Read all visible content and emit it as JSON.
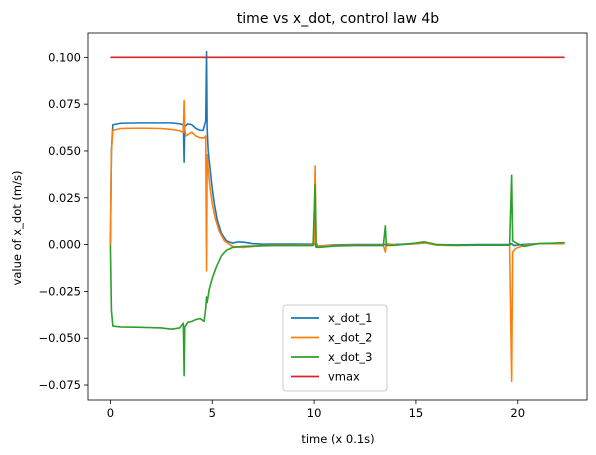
{
  "chart_data": {
    "type": "line",
    "title": "time vs x_dot, control law 4b",
    "xlabel": "time (x 0.1s)",
    "ylabel": "value of x_dot (m/s)",
    "xlim": [
      -1.1,
      23.4
    ],
    "ylim": [
      -0.083,
      0.113
    ],
    "xticks": [
      0,
      5,
      10,
      15,
      20
    ],
    "yticks": [
      -0.075,
      -0.05,
      -0.025,
      0.0,
      0.025,
      0.05,
      0.075,
      0.1
    ],
    "ytick_labels": [
      "−0.075",
      "−0.050",
      "−0.025",
      "0.000",
      "0.025",
      "0.050",
      "0.075",
      "0.100"
    ],
    "grid": false,
    "legend_position": "lower-center",
    "series": [
      {
        "name": "x_dot_1",
        "color": "#1f77b4",
        "points": [
          [
            0,
            0
          ],
          [
            0.05,
            0.05
          ],
          [
            0.12,
            0.064
          ],
          [
            0.5,
            0.0648
          ],
          [
            1.5,
            0.065
          ],
          [
            2.5,
            0.065
          ],
          [
            3.0,
            0.065
          ],
          [
            3.4,
            0.0645
          ],
          [
            3.58,
            0.064
          ],
          [
            3.62,
            0.044
          ],
          [
            3.65,
            0.063
          ],
          [
            3.8,
            0.0645
          ],
          [
            4.0,
            0.064
          ],
          [
            4.2,
            0.062
          ],
          [
            4.4,
            0.061
          ],
          [
            4.55,
            0.061
          ],
          [
            4.68,
            0.066
          ],
          [
            4.72,
            0.103
          ],
          [
            4.75,
            0.062
          ],
          [
            4.8,
            0.05
          ],
          [
            4.9,
            0.04
          ],
          [
            5.0,
            0.03
          ],
          [
            5.1,
            0.022
          ],
          [
            5.25,
            0.013
          ],
          [
            5.45,
            0.006
          ],
          [
            5.7,
            0.002
          ],
          [
            6.0,
            0.0008
          ],
          [
            6.3,
            0.0015
          ],
          [
            6.6,
            0.0012
          ],
          [
            7.0,
            0.0005
          ],
          [
            7.5,
            0.0002
          ],
          [
            8.0,
            0.0003
          ],
          [
            9.0,
            0.0003
          ],
          [
            9.9,
            0.0002
          ],
          [
            10.05,
            0.0005
          ],
          [
            10.1,
            -0.0015
          ],
          [
            10.2,
            -0.0008
          ],
          [
            11.0,
            -0.0002
          ],
          [
            12.0,
            0
          ],
          [
            13.0,
            0
          ],
          [
            14.0,
            0.0001
          ],
          [
            15.0,
            0.0005
          ],
          [
            15.5,
            0.001
          ],
          [
            16.0,
            0
          ],
          [
            17.0,
            -0.0002
          ],
          [
            18.0,
            0
          ],
          [
            19.0,
            0
          ],
          [
            19.6,
            0
          ],
          [
            19.7,
            0.0005
          ],
          [
            19.8,
            -0.0005
          ],
          [
            20.2,
            0
          ],
          [
            21.0,
            0.0005
          ],
          [
            22.3,
            0.0008
          ]
        ]
      },
      {
        "name": "x_dot_2",
        "color": "#ff7f0e",
        "points": [
          [
            0,
            0
          ],
          [
            0.05,
            0.05
          ],
          [
            0.12,
            0.061
          ],
          [
            0.5,
            0.062
          ],
          [
            1.5,
            0.0622
          ],
          [
            2.5,
            0.062
          ],
          [
            3.0,
            0.0615
          ],
          [
            3.4,
            0.0608
          ],
          [
            3.58,
            0.06
          ],
          [
            3.62,
            0.077
          ],
          [
            3.65,
            0.062
          ],
          [
            3.7,
            0.058
          ],
          [
            4.0,
            0.06
          ],
          [
            4.2,
            0.058
          ],
          [
            4.4,
            0.057
          ],
          [
            4.6,
            0.057
          ],
          [
            4.68,
            0.058
          ],
          [
            4.72,
            -0.014
          ],
          [
            4.75,
            0.048
          ],
          [
            4.8,
            0.04
          ],
          [
            4.9,
            0.03
          ],
          [
            5.0,
            0.022
          ],
          [
            5.15,
            0.014
          ],
          [
            5.35,
            0.007
          ],
          [
            5.6,
            0.002
          ],
          [
            6.0,
            -0.001
          ],
          [
            6.5,
            -0.0015
          ],
          [
            7.0,
            -0.001
          ],
          [
            7.5,
            -0.0005
          ],
          [
            8.0,
            -0.0003
          ],
          [
            9.0,
            -0.0003
          ],
          [
            9.9,
            -0.0002
          ],
          [
            10.0,
            0
          ],
          [
            10.05,
            0.042
          ],
          [
            10.1,
            0.001
          ],
          [
            10.2,
            -0.0008
          ],
          [
            11.0,
            -0.0005
          ],
          [
            12.0,
            -0.0003
          ],
          [
            13.4,
            -0.0003
          ],
          [
            13.5,
            -0.004
          ],
          [
            13.55,
            0.0005
          ],
          [
            14.0,
            -0.0002
          ],
          [
            15.0,
            0.0005
          ],
          [
            15.4,
            0.001
          ],
          [
            16.0,
            -0.0003
          ],
          [
            17.0,
            -0.0005
          ],
          [
            18.0,
            -0.0003
          ],
          [
            19.0,
            -0.0003
          ],
          [
            19.6,
            -0.0003
          ],
          [
            19.7,
            -0.073
          ],
          [
            19.75,
            -0.004
          ],
          [
            19.9,
            -0.002
          ],
          [
            20.3,
            -0.0005
          ],
          [
            21.0,
            0.0005
          ],
          [
            22.3,
            0.0005
          ]
        ]
      },
      {
        "name": "x_dot_3",
        "color": "#2ca02c",
        "points": [
          [
            0,
            0
          ],
          [
            0.05,
            -0.035
          ],
          [
            0.12,
            -0.0435
          ],
          [
            0.5,
            -0.044
          ],
          [
            1.5,
            -0.0442
          ],
          [
            2.5,
            -0.0445
          ],
          [
            3.0,
            -0.0452
          ],
          [
            3.4,
            -0.0445
          ],
          [
            3.58,
            -0.042
          ],
          [
            3.62,
            -0.07
          ],
          [
            3.65,
            -0.044
          ],
          [
            3.8,
            -0.0415
          ],
          [
            4.0,
            -0.041
          ],
          [
            4.2,
            -0.04
          ],
          [
            4.4,
            -0.0395
          ],
          [
            4.6,
            -0.041
          ],
          [
            4.68,
            -0.034
          ],
          [
            4.72,
            -0.028
          ],
          [
            4.75,
            -0.031
          ],
          [
            4.85,
            -0.024
          ],
          [
            5.0,
            -0.018
          ],
          [
            5.2,
            -0.012
          ],
          [
            5.45,
            -0.006
          ],
          [
            5.7,
            -0.003
          ],
          [
            6.0,
            -0.0015
          ],
          [
            6.5,
            -0.001
          ],
          [
            7.0,
            -0.0008
          ],
          [
            8.0,
            -0.0005
          ],
          [
            9.0,
            -0.0005
          ],
          [
            9.95,
            -0.0005
          ],
          [
            10.05,
            0.032
          ],
          [
            10.1,
            -0.001
          ],
          [
            10.2,
            -0.0015
          ],
          [
            11.0,
            -0.0008
          ],
          [
            12.0,
            -0.0005
          ],
          [
            13.4,
            -0.0005
          ],
          [
            13.5,
            0.01
          ],
          [
            13.55,
            -0.0005
          ],
          [
            14.0,
            -0.0003
          ],
          [
            15.0,
            0.0008
          ],
          [
            15.4,
            0.0015
          ],
          [
            16.0,
            0
          ],
          [
            17.0,
            -0.0003
          ],
          [
            18.0,
            -0.0003
          ],
          [
            19.0,
            -0.0003
          ],
          [
            19.6,
            -0.0003
          ],
          [
            19.7,
            0.037
          ],
          [
            19.75,
            0.002
          ],
          [
            19.9,
            0.001
          ],
          [
            20.3,
            -0.001
          ],
          [
            21.0,
            0.0005
          ],
          [
            22.3,
            0.001
          ]
        ]
      },
      {
        "name": "vmax",
        "color": "#d62728",
        "points": [
          [
            0,
            0.1
          ],
          [
            22.3,
            0.1
          ]
        ]
      }
    ]
  }
}
